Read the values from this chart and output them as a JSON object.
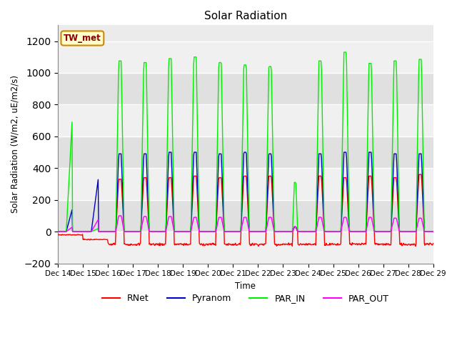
{
  "title": "Solar Radiation",
  "ylabel": "Solar Radiation (W/m2, uE/m2/s)",
  "xlabel": "Time",
  "station_label": "TW_met",
  "ylim": [
    -200,
    1300
  ],
  "yticks": [
    -200,
    0,
    200,
    400,
    600,
    800,
    1000,
    1200
  ],
  "colors": {
    "RNet": "#ff0000",
    "Pyranom": "#0000cc",
    "PAR_IN": "#00ee00",
    "PAR_OUT": "#ff00ff"
  },
  "background_color": "#ffffff",
  "plot_bg_color": "#ebebeb",
  "grid_color": "#ffffff",
  "start_day": 14,
  "num_days": 15
}
